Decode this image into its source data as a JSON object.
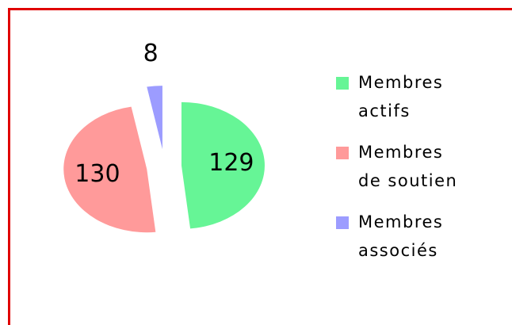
{
  "chart_data": {
    "type": "pie",
    "categories": [
      "Membres actifs",
      "Membres de soutien",
      "Membres associés"
    ],
    "values": [
      129,
      130,
      8
    ],
    "colors": [
      "#66f596",
      "#ff9a9a",
      "#9c9cff"
    ],
    "legend": "right"
  }
}
